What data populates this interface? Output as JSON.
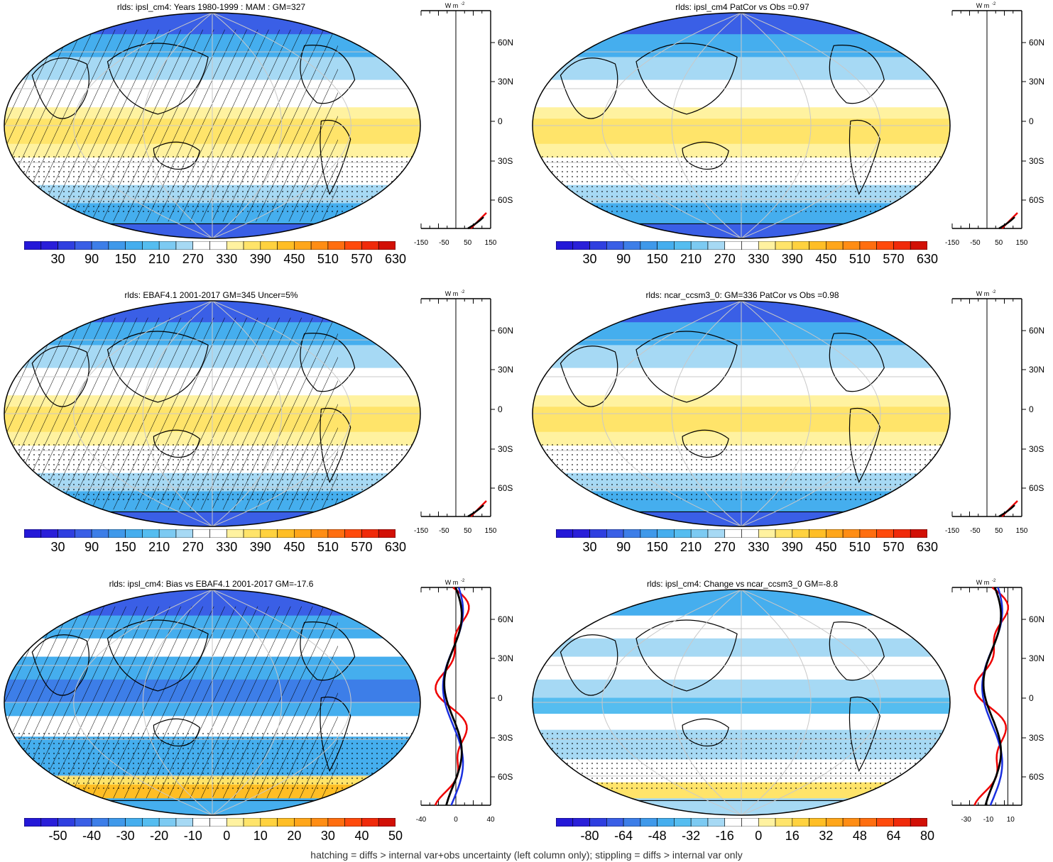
{
  "panels": [
    {
      "id": "p1",
      "title": "rlds: ipsl_cm4: Years 1980-1999 : MAM : GM=327",
      "kind": "abs",
      "hatch": true,
      "stipple": true
    },
    {
      "id": "p2",
      "title": "rlds: ipsl_cm4 PatCor vs Obs =0.97",
      "kind": "abs",
      "hatch": false,
      "stipple": true
    },
    {
      "id": "p3",
      "title": "rlds: EBAF4.1 2001-2017 GM=345 Uncer=5%",
      "kind": "abs",
      "hatch": true,
      "stipple": true
    },
    {
      "id": "p4",
      "title": "rlds: ncar_ccsm3_0: GM=336 PatCor vs Obs =0.98",
      "kind": "abs",
      "hatch": false,
      "stipple": true
    },
    {
      "id": "p5",
      "title": "rlds: ipsl_cm4: Bias vs EBAF4.1 2001-2017 GM=-17.6",
      "kind": "bias",
      "hatch": true,
      "stipple": true
    },
    {
      "id": "p6",
      "title": "rlds: ipsl_cm4: Change vs ncar_ccsm3_0 GM=-8.8",
      "kind": "change",
      "hatch": false,
      "stipple": true
    }
  ],
  "colorbars": {
    "abs": {
      "labels": [
        "30",
        "90",
        "150",
        "210",
        "270",
        "330",
        "390",
        "450",
        "510",
        "570",
        "630"
      ]
    },
    "bias": {
      "labels": [
        "-50",
        "-40",
        "-30",
        "-20",
        "-10",
        "0",
        "10",
        "20",
        "30",
        "40",
        "50"
      ]
    },
    "change": {
      "labels": [
        "-80",
        "-64",
        "-48",
        "-32",
        "-16",
        "0",
        "16",
        "32",
        "48",
        "64",
        "80"
      ]
    }
  },
  "palette": [
    "#2a1fd9",
    "#2f3fe0",
    "#3a5fe6",
    "#3d7ee8",
    "#3f99ea",
    "#45aeee",
    "#55bdf0",
    "#7ccaf2",
    "#a6d9f4",
    "#ffffff",
    "#ffffff",
    "#fff2a0",
    "#ffe46a",
    "#ffd23f",
    "#ffbe25",
    "#ffa61a",
    "#ff8d14",
    "#ff6e10",
    "#ff4a0c",
    "#f02a0a",
    "#d21006"
  ],
  "zonal": {
    "unit_label": "W m",
    "unit_sup": "-2",
    "lat_labels": [
      "60N",
      "30N",
      "0",
      "30S",
      "60S"
    ],
    "abs_ticks": [
      "-150",
      "-50",
      "50",
      "150"
    ],
    "bias_ticks": [
      "-40",
      "0",
      "40"
    ],
    "change_ticks": [
      "-30",
      "-10",
      "10"
    ]
  },
  "footnote": "hatching = diffs > internal var+obs uncertainty (left column only); stippling = diffs > internal var only"
}
